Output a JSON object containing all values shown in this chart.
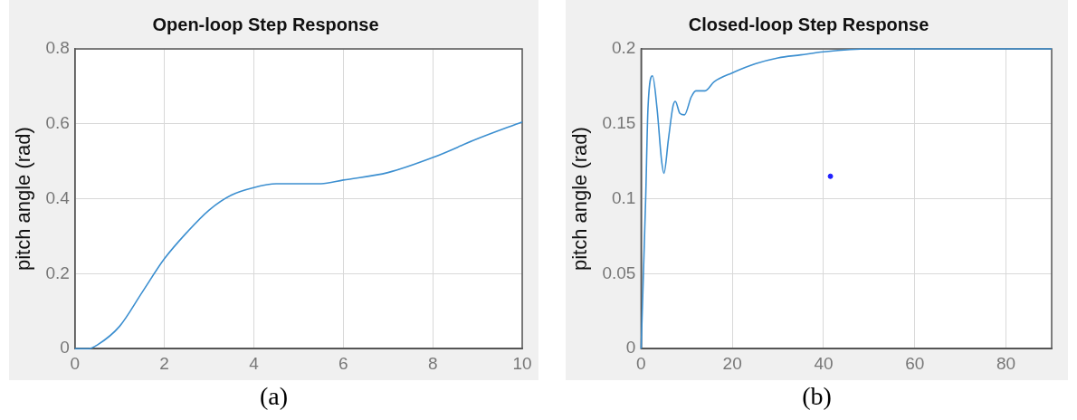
{
  "chart_data": [
    {
      "type": "line",
      "title": "Open-loop Step Response",
      "ylabel": "pitch angle (rad)",
      "annotations": [
        "(a)"
      ],
      "xlim": [
        0,
        10
      ],
      "xticks": [
        0,
        2,
        4,
        6,
        8,
        10
      ],
      "ylim": [
        0,
        0.8
      ],
      "yticks": [
        0,
        0.2,
        0.4,
        0.6,
        0.8
      ],
      "grid": true,
      "marker": "none",
      "line_style": "solid",
      "x": [
        0,
        0.3,
        0.5,
        1,
        1.5,
        2,
        2.5,
        3,
        3.5,
        4,
        4.5,
        5,
        5.5,
        6,
        7,
        8,
        9,
        10
      ],
      "series": [
        {
          "color": "#3c8fd0",
          "values": [
            0,
            0,
            0.01,
            0.06,
            0.15,
            0.24,
            0.31,
            0.37,
            0.41,
            0.43,
            0.44,
            0.44,
            0.44,
            0.45,
            0.47,
            0.51,
            0.56,
            0.605
          ]
        }
      ]
    },
    {
      "type": "line",
      "title": "Closed-loop Step Response",
      "ylabel": "pitch angle (rad)",
      "annotations": [
        "(b)"
      ],
      "xlim": [
        0,
        90
      ],
      "xticks": [
        0,
        20,
        40,
        60,
        80
      ],
      "ylim": [
        0,
        0.2
      ],
      "yticks": [
        0,
        0.05,
        0.1,
        0.15,
        0.2
      ],
      "grid": true,
      "marker": "none",
      "line_style": "solid",
      "series": [
        {
          "color": "#3c8fd0",
          "x": [
            0,
            1,
            1.5,
            2.5,
            3.5,
            4.5,
            5,
            6,
            7,
            7.5,
            8.5,
            9.5,
            11,
            12,
            14,
            16,
            20,
            25,
            30,
            35,
            40,
            50,
            90
          ],
          "values": [
            0,
            0.1,
            0.16,
            0.182,
            0.16,
            0.125,
            0.117,
            0.14,
            0.162,
            0.165,
            0.157,
            0.156,
            0.168,
            0.172,
            0.172,
            0.178,
            0.184,
            0.19,
            0.194,
            0.196,
            0.198,
            0.2,
            0.2
          ]
        },
        {
          "type": "scatter",
          "color": "#2020ff",
          "marker": "circle",
          "x": [
            41.5
          ],
          "values": [
            0.115
          ]
        }
      ]
    }
  ]
}
